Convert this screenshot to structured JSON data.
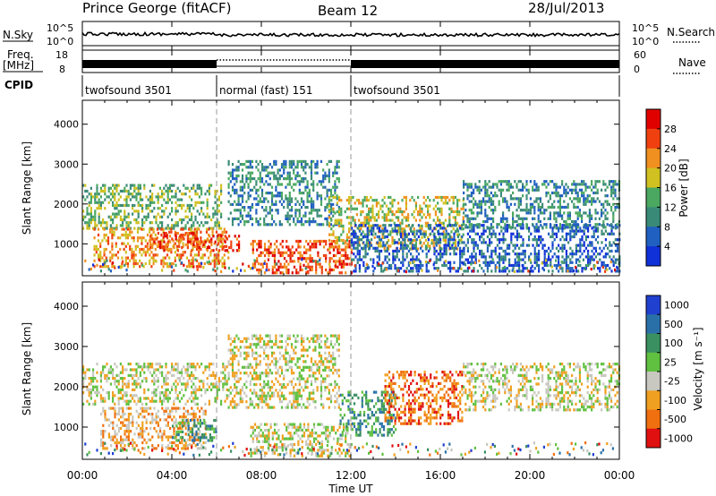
{
  "header": {
    "station": "Prince George (fitACF)",
    "beam": "Beam 12",
    "date": "28/Jul/2013"
  },
  "top_panels": {
    "nsky_label": "N.Sky",
    "nsky_ticks": [
      "10^5",
      "10^0"
    ],
    "nsearch_label": "N.Search",
    "nsearch_ticks": [
      "10^5",
      "10^0"
    ],
    "freq_label_1": "Freq.",
    "freq_label_2": "[MHz]",
    "freq_ticks": [
      "18",
      "8"
    ],
    "nave_label": "Nave",
    "nave_ticks": [
      "60",
      "0"
    ],
    "cpid_label": "CPID",
    "cpid_segments": [
      {
        "label": "twofsound 3501",
        "start_h": 0,
        "end_h": 6
      },
      {
        "label": "normal (fast) 151",
        "start_h": 6,
        "end_h": 12
      },
      {
        "label": "twofsound 3501",
        "start_h": 12,
        "end_h": 24
      }
    ]
  },
  "chart_data": [
    {
      "type": "heatmap",
      "name": "power-panel",
      "ylabel": "Slant Range [km]",
      "yticks": [
        "1000",
        "2000",
        "3000",
        "4000"
      ],
      "ylim": [
        200,
        4600
      ],
      "xlim": [
        0,
        24
      ],
      "colorbar_label": "Power [dB]",
      "colorbar_ticks": [
        "4",
        "8",
        "12",
        "16",
        "20",
        "24",
        "28"
      ],
      "colorbar_range": [
        0,
        32
      ],
      "colors": [
        "#1030d8",
        "#2060c0",
        "#3a8a78",
        "#4aa860",
        "#d0c020",
        "#f09020",
        "#f04010",
        "#e00000"
      ],
      "echo_regions": [
        {
          "t0": 0.0,
          "t1": 6.2,
          "r_lo": 1400,
          "r_hi": 2500,
          "level": 3
        },
        {
          "t0": 0.5,
          "t1": 6.5,
          "r_lo": 400,
          "r_hi": 1400,
          "level": 5
        },
        {
          "t0": 3.0,
          "t1": 7.0,
          "r_lo": 800,
          "r_hi": 1300,
          "level": 6
        },
        {
          "t0": 6.5,
          "t1": 11.5,
          "r_lo": 1500,
          "r_hi": 3100,
          "level": 2
        },
        {
          "t0": 7.5,
          "t1": 12.0,
          "r_lo": 300,
          "r_hi": 1100,
          "level": 6
        },
        {
          "t0": 11.0,
          "t1": 17.0,
          "r_lo": 900,
          "r_hi": 2200,
          "level": 4
        },
        {
          "t0": 12.0,
          "t1": 24.0,
          "r_lo": 300,
          "r_hi": 1500,
          "level": 1
        },
        {
          "t0": 17.0,
          "t1": 24.0,
          "r_lo": 1400,
          "r_hi": 2600,
          "level": 2
        }
      ]
    },
    {
      "type": "heatmap",
      "name": "velocity-panel",
      "ylabel": "Slant Range [km]",
      "yticks": [
        "1000",
        "2000",
        "3000",
        "4000"
      ],
      "ylim": [
        200,
        4600
      ],
      "xlim": [
        0,
        24
      ],
      "colorbar_label": "Velocity [m s⁻¹]",
      "colorbar_ticks": [
        "1000",
        "500",
        "100",
        "25",
        "-25",
        "-100",
        "-500",
        "-1000"
      ],
      "colors": [
        "#2040d0",
        "#2a70a8",
        "#3a9060",
        "#60c040",
        "#c8c8c0",
        "#f0a020",
        "#f07010",
        "#e01010"
      ],
      "echo_regions": [
        {
          "t0": 0.0,
          "t1": 6.5,
          "r_lo": 1600,
          "r_hi": 2600,
          "level": 4
        },
        {
          "t0": 0.8,
          "t1": 5.5,
          "r_lo": 500,
          "r_hi": 1500,
          "level": 5
        },
        {
          "t0": 4.0,
          "t1": 6.0,
          "r_lo": 700,
          "r_hi": 1200,
          "level": 2
        },
        {
          "t0": 6.5,
          "t1": 11.5,
          "r_lo": 1500,
          "r_hi": 3300,
          "level": 4
        },
        {
          "t0": 7.5,
          "t1": 12.0,
          "r_lo": 300,
          "r_hi": 1100,
          "level": 4
        },
        {
          "t0": 11.5,
          "t1": 14.0,
          "r_lo": 800,
          "r_hi": 1900,
          "level": 2
        },
        {
          "t0": 13.5,
          "t1": 17.0,
          "r_lo": 1100,
          "r_hi": 2400,
          "level": 6
        },
        {
          "t0": 17.0,
          "t1": 24.0,
          "r_lo": 1400,
          "r_hi": 2600,
          "level": 4
        }
      ]
    }
  ],
  "xaxis": {
    "ticks": [
      "00:00",
      "04:00",
      "08:00",
      "12:00",
      "16:00",
      "20:00",
      "00:00"
    ],
    "label": "Time UT"
  }
}
